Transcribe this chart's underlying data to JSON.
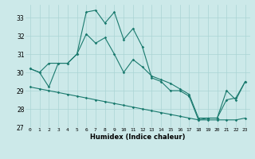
{
  "title": "",
  "xlabel": "Humidex (Indice chaleur)",
  "bg_color": "#cce9e9",
  "grid_color": "#aad4d4",
  "line_color": "#1a7a6e",
  "xlim": [
    -0.5,
    23.5
  ],
  "ylim": [
    27.0,
    33.7
  ],
  "yticks": [
    27,
    28,
    29,
    30,
    31,
    32,
    33
  ],
  "xticks": [
    0,
    1,
    2,
    3,
    4,
    5,
    6,
    7,
    8,
    9,
    10,
    11,
    12,
    13,
    14,
    15,
    16,
    17,
    18,
    19,
    20,
    21,
    22,
    23
  ],
  "line1": [
    30.2,
    30.0,
    29.2,
    30.5,
    30.5,
    31.0,
    33.3,
    33.4,
    32.7,
    33.3,
    31.8,
    32.4,
    31.4,
    29.7,
    29.5,
    29.0,
    29.0,
    28.7,
    27.4,
    27.5,
    27.5,
    28.5,
    28.6,
    29.5
  ],
  "line2": [
    30.2,
    30.0,
    30.5,
    30.5,
    30.5,
    31.0,
    32.1,
    31.6,
    31.9,
    31.0,
    30.0,
    30.7,
    30.3,
    29.8,
    29.6,
    29.4,
    29.1,
    28.8,
    27.5,
    27.5,
    27.5,
    29.0,
    28.5,
    29.5
  ],
  "line3": [
    29.2,
    29.1,
    29.0,
    28.9,
    28.8,
    28.7,
    28.6,
    28.5,
    28.4,
    28.3,
    28.2,
    28.1,
    28.0,
    27.9,
    27.8,
    27.7,
    27.6,
    27.5,
    27.4,
    27.4,
    27.4,
    27.4,
    27.4,
    27.5
  ]
}
